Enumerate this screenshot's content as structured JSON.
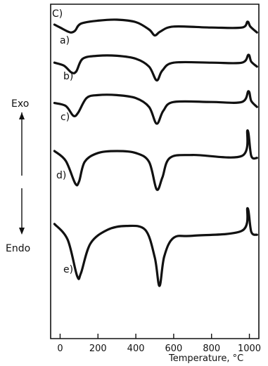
{
  "chart_data": {
    "type": "line",
    "panel_label": "C)",
    "xlabel": "Temperature, °C",
    "xlim": [
      -50,
      1050
    ],
    "x_ticks": [
      0,
      200,
      400,
      600,
      800,
      1000
    ],
    "y_axis_direction": {
      "up": "Exo",
      "down": "Endo"
    },
    "grid": false,
    "series": [
      {
        "name": "a)",
        "points": [
          [
            -30,
            0.5
          ],
          [
            0,
            0.2
          ],
          [
            40,
            -0.2
          ],
          [
            60,
            -0.3
          ],
          [
            80,
            -0.1
          ],
          [
            110,
            0.6
          ],
          [
            200,
            0.9
          ],
          [
            300,
            1.0
          ],
          [
            400,
            0.75
          ],
          [
            470,
            0.0
          ],
          [
            500,
            -0.6
          ],
          [
            530,
            -0.2
          ],
          [
            600,
            0.3
          ],
          [
            800,
            0.2
          ],
          [
            960,
            0.2
          ],
          [
            990,
            0.8
          ],
          [
            1005,
            0.3
          ],
          [
            1040,
            -0.3
          ]
        ]
      },
      {
        "name": "b)",
        "points": [
          [
            -30,
            0.2
          ],
          [
            20,
            -0.1
          ],
          [
            60,
            -0.8
          ],
          [
            85,
            -0.7
          ],
          [
            120,
            0.6
          ],
          [
            200,
            0.9
          ],
          [
            300,
            0.9
          ],
          [
            400,
            0.6
          ],
          [
            470,
            -0.2
          ],
          [
            510,
            -1.6
          ],
          [
            540,
            -0.6
          ],
          [
            600,
            0.2
          ],
          [
            800,
            0.2
          ],
          [
            960,
            0.2
          ],
          [
            995,
            1.0
          ],
          [
            1010,
            0.3
          ],
          [
            1040,
            -0.2
          ]
        ]
      },
      {
        "name": "c)",
        "points": [
          [
            -30,
            0.1
          ],
          [
            30,
            -0.2
          ],
          [
            70,
            -1.2
          ],
          [
            95,
            -0.9
          ],
          [
            140,
            0.6
          ],
          [
            200,
            0.9
          ],
          [
            300,
            0.9
          ],
          [
            400,
            0.6
          ],
          [
            470,
            -0.3
          ],
          [
            510,
            -2.0
          ],
          [
            545,
            -0.7
          ],
          [
            600,
            0.2
          ],
          [
            800,
            0.2
          ],
          [
            960,
            0.2
          ],
          [
            995,
            1.3
          ],
          [
            1010,
            0.3
          ],
          [
            1040,
            -0.3
          ]
        ]
      },
      {
        "name": "d)",
        "points": [
          [
            -30,
            0.5
          ],
          [
            30,
            -0.5
          ],
          [
            80,
            -2.8
          ],
          [
            100,
            -2.6
          ],
          [
            130,
            -0.6
          ],
          [
            200,
            0.3
          ],
          [
            300,
            0.5
          ],
          [
            400,
            0.3
          ],
          [
            470,
            -0.6
          ],
          [
            510,
            -3.4
          ],
          [
            540,
            -2.2
          ],
          [
            580,
            -0.2
          ],
          [
            700,
            0.1
          ],
          [
            960,
            0.0
          ],
          [
            990,
            2.6
          ],
          [
            1010,
            0.0
          ],
          [
            1040,
            -0.2
          ]
        ]
      },
      {
        "name": "e)",
        "points": [
          [
            -30,
            0.8
          ],
          [
            40,
            -0.8
          ],
          [
            90,
            -4.5
          ],
          [
            110,
            -4.2
          ],
          [
            160,
            -1.2
          ],
          [
            250,
            0.2
          ],
          [
            350,
            0.6
          ],
          [
            450,
            0.2
          ],
          [
            500,
            -2.6
          ],
          [
            525,
            -5.5
          ],
          [
            550,
            -2.5
          ],
          [
            600,
            -0.6
          ],
          [
            700,
            -0.4
          ],
          [
            960,
            0.1
          ],
          [
            990,
            2.4
          ],
          [
            1010,
            0.0
          ],
          [
            1040,
            -0.3
          ]
        ]
      }
    ]
  }
}
